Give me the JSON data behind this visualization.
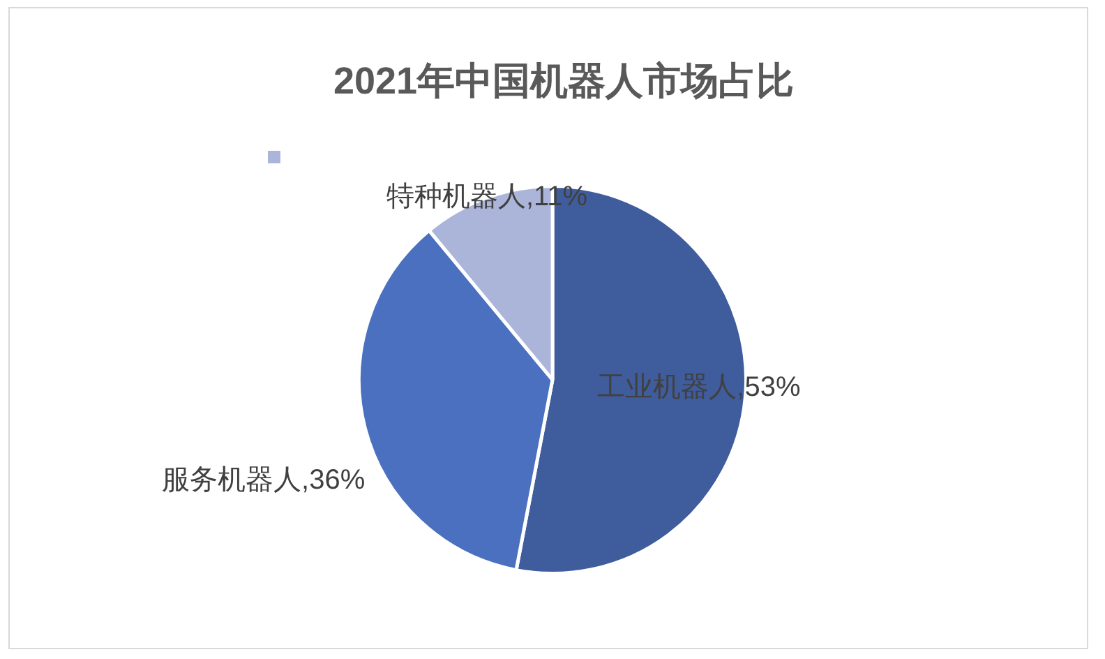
{
  "chart_data": {
    "type": "pie",
    "title": "2021年中国机器人市场占比",
    "categories": [
      "工业机器人",
      "服务机器人",
      "特种机器人"
    ],
    "values": [
      53,
      36,
      11
    ],
    "colors": [
      "#3f5c9c",
      "#4b70c0",
      "#abb5da"
    ],
    "value_labels": [
      "53%",
      "36%",
      "11%"
    ]
  }
}
